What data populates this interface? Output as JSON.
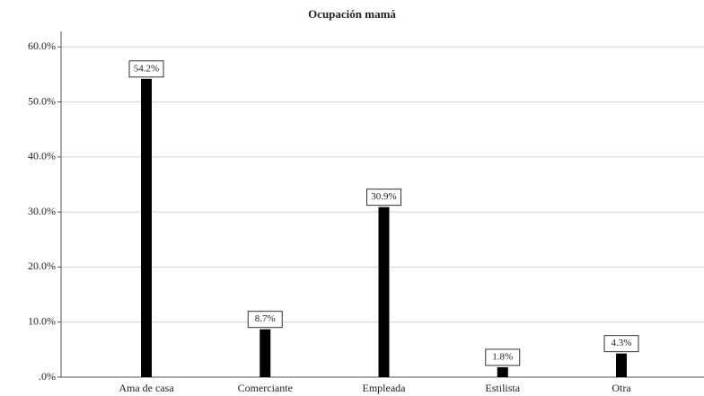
{
  "chart_data": {
    "type": "bar",
    "title": "Ocupación mamá",
    "categories": [
      "Ama de casa",
      "Comerciante",
      "Empleada",
      "Estilista",
      "Otra"
    ],
    "values": [
      54.2,
      8.7,
      30.9,
      1.8,
      4.3
    ],
    "value_labels": [
      "54.2%",
      "8.7%",
      "30.9%",
      "1.8%",
      "4.3%"
    ],
    "color": "#000000",
    "ylim": [
      0,
      62
    ],
    "yticks": [
      {
        "value": 0,
        "label": ".0%"
      },
      {
        "value": 10,
        "label": "10.0%"
      },
      {
        "value": 20,
        "label": "20.0%"
      },
      {
        "value": 30,
        "label": "30.0%"
      },
      {
        "value": 40,
        "label": "40.0%"
      },
      {
        "value": 50,
        "label": "50.0%"
      },
      {
        "value": 60,
        "label": "60.0%"
      }
    ],
    "grid": true
  }
}
